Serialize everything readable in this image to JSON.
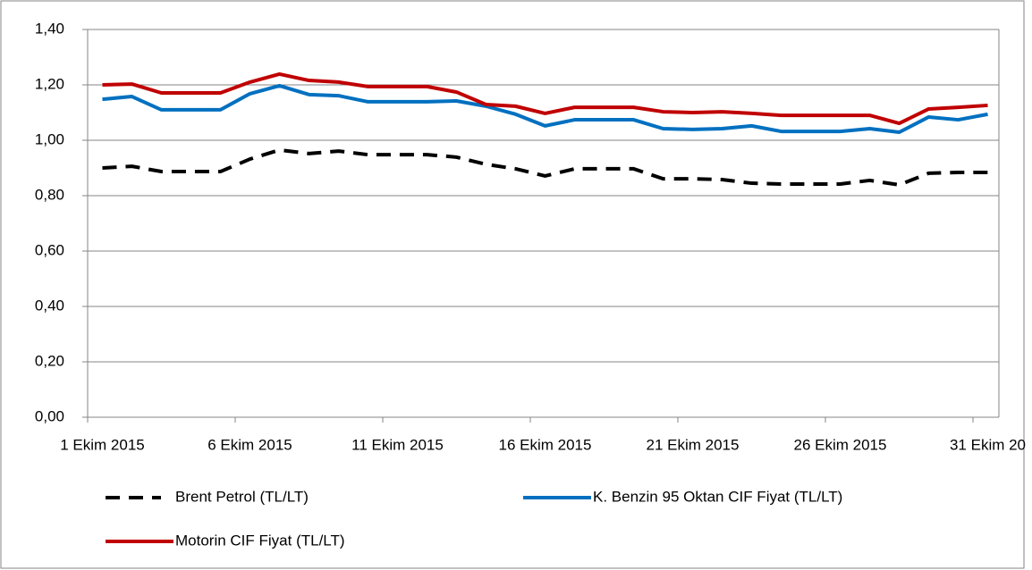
{
  "chart_data": {
    "type": "line",
    "categories": [
      "1 Ekim 2015",
      null,
      null,
      null,
      null,
      "6 Ekim 2015",
      null,
      null,
      null,
      null,
      "11 Ekim 2015",
      null,
      null,
      null,
      null,
      "16 Ekim 2015",
      null,
      null,
      null,
      null,
      "21 Ekim 2015",
      null,
      null,
      null,
      null,
      "26 Ekim 2015",
      null,
      null,
      null,
      null,
      "31 Ekim 20"
    ],
    "series": [
      {
        "name": "Brent Petrol (TL/LT)",
        "color": "#000000",
        "dashed": true,
        "values": [
          0.9,
          0.906,
          0.887,
          0.887,
          0.887,
          0.932,
          0.965,
          0.952,
          0.961,
          0.948,
          0.948,
          0.948,
          0.939,
          0.913,
          0.897,
          0.871,
          0.897,
          0.897,
          0.897,
          0.861,
          0.861,
          0.858,
          0.845,
          0.842,
          0.842,
          0.842,
          0.855,
          0.839,
          0.881,
          0.884,
          0.884
        ]
      },
      {
        "name": "K. Benzin 95 Oktan CIF Fiyat (TL/LT)",
        "color": "#0070c0",
        "dashed": false,
        "values": [
          1.148,
          1.158,
          1.11,
          1.11,
          1.11,
          1.168,
          1.197,
          1.165,
          1.161,
          1.139,
          1.139,
          1.139,
          1.142,
          1.123,
          1.094,
          1.052,
          1.074,
          1.074,
          1.074,
          1.042,
          1.039,
          1.042,
          1.052,
          1.032,
          1.032,
          1.032,
          1.042,
          1.029,
          1.084,
          1.074,
          1.094
        ]
      },
      {
        "name": "Motorin CIF Fiyat (TL/LT)",
        "color": "#c00000",
        "dashed": false,
        "values": [
          1.2,
          1.203,
          1.171,
          1.171,
          1.171,
          1.21,
          1.239,
          1.216,
          1.21,
          1.194,
          1.194,
          1.194,
          1.174,
          1.129,
          1.123,
          1.097,
          1.119,
          1.119,
          1.119,
          1.103,
          1.1,
          1.103,
          1.097,
          1.09,
          1.09,
          1.09,
          1.09,
          1.061,
          1.113,
          1.119,
          1.126
        ]
      }
    ],
    "ylim": [
      0,
      1.4
    ],
    "yticks": [
      {
        "value": 0,
        "label": "0,00"
      },
      {
        "value": 0.2,
        "label": "0,20"
      },
      {
        "value": 0.4,
        "label": "0,40"
      },
      {
        "value": 0.6,
        "label": "0,60"
      },
      {
        "value": 0.8,
        "label": "0,80"
      },
      {
        "value": 1.0,
        "label": "1,00"
      },
      {
        "value": 1.2,
        "label": "1,20"
      },
      {
        "value": 1.4,
        "label": "1,40"
      }
    ],
    "grid": true,
    "legend": "bottom"
  }
}
